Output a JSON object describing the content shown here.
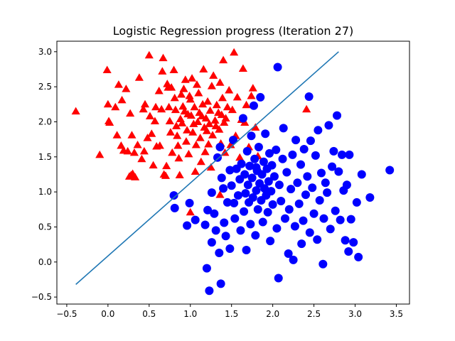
{
  "chart_data": {
    "type": "scatter",
    "title": "Logistic Regression progress (Iteration 27)",
    "xlabel": "",
    "ylabel": "",
    "xlim": [
      -0.62,
      3.66
    ],
    "ylim": [
      -0.6,
      3.15
    ],
    "x_ticks": [
      -0.5,
      0.0,
      0.5,
      1.0,
      1.5,
      2.0,
      2.5,
      3.0,
      3.5
    ],
    "y_ticks": [
      -0.5,
      0.0,
      0.5,
      1.0,
      1.5,
      2.0,
      2.5,
      3.0
    ],
    "x_tick_labels": [
      "−0.5",
      "0.0",
      "0.5",
      "1.0",
      "1.5",
      "2.0",
      "2.5",
      "3.0",
      "3.5"
    ],
    "y_tick_labels": [
      "−0.5",
      "0.0",
      "0.5",
      "1.0",
      "1.5",
      "2.0",
      "2.5",
      "3.0"
    ],
    "grid": false,
    "legend": "none",
    "series": [
      {
        "marker": "triangle",
        "color": "#ff0000",
        "points": [
          [
            -0.39,
            2.14
          ],
          [
            -0.1,
            1.52
          ],
          [
            -0.01,
            2.73
          ],
          [
            0.0,
            2.24
          ],
          [
            0.01,
            2.0
          ],
          [
            0.02,
            1.98
          ],
          [
            0.09,
            2.2
          ],
          [
            0.11,
            1.8
          ],
          [
            0.13,
            2.52
          ],
          [
            0.16,
            1.65
          ],
          [
            0.17,
            2.3
          ],
          [
            0.19,
            1.58
          ],
          [
            0.22,
            2.46
          ],
          [
            0.24,
            1.57
          ],
          [
            0.26,
            1.21
          ],
          [
            0.27,
            2.11
          ],
          [
            0.28,
            1.23
          ],
          [
            0.29,
            1.8
          ],
          [
            0.3,
            1.25
          ],
          [
            0.32,
            1.55
          ],
          [
            0.33,
            1.2
          ],
          [
            0.36,
            1.66
          ],
          [
            0.38,
            2.62
          ],
          [
            0.41,
            1.46
          ],
          [
            0.43,
            2.17
          ],
          [
            0.44,
            1.57
          ],
          [
            0.45,
            2.24
          ],
          [
            0.48,
            1.76
          ],
          [
            0.5,
            2.94
          ],
          [
            0.51,
            2.07
          ],
          [
            0.53,
            1.82
          ],
          [
            0.55,
            1.37
          ],
          [
            0.57,
            2.0
          ],
          [
            0.58,
            2.2
          ],
          [
            0.59,
            1.64
          ],
          [
            0.62,
            2.43
          ],
          [
            0.63,
            1.65
          ],
          [
            0.65,
            2.17
          ],
          [
            0.66,
            2.71
          ],
          [
            0.67,
            2.9
          ],
          [
            0.68,
            1.24
          ],
          [
            0.7,
            1.22
          ],
          [
            0.71,
            1.36
          ],
          [
            0.72,
            2.53
          ],
          [
            0.73,
            2.48
          ],
          [
            0.74,
            2.2
          ],
          [
            0.75,
            2.0
          ],
          [
            0.76,
            1.84
          ],
          [
            0.77,
            2.48
          ],
          [
            0.78,
            1.55
          ],
          [
            0.8,
            2.73
          ],
          [
            0.81,
            2.33
          ],
          [
            0.82,
            2.16
          ],
          [
            0.83,
            1.93
          ],
          [
            0.84,
            1.79
          ],
          [
            0.85,
            1.65
          ],
          [
            0.86,
            1.47
          ],
          [
            0.87,
            1.23
          ],
          [
            0.88,
            2.03
          ],
          [
            0.89,
            2.38
          ],
          [
            0.9,
            1.97
          ],
          [
            0.91,
            2.21
          ],
          [
            0.92,
            2.46
          ],
          [
            0.93,
            2.14
          ],
          [
            0.94,
            2.59
          ],
          [
            0.95,
            1.71
          ],
          [
            0.96,
            1.87
          ],
          [
            0.97,
            2.1
          ],
          [
            0.98,
            1.53
          ],
          [
            0.99,
            2.36
          ],
          [
            1.0,
            2.31
          ],
          [
            1.01,
            2.08
          ],
          [
            1.02,
            2.61
          ],
          [
            1.03,
            1.84
          ],
          [
            1.04,
            1.96
          ],
          [
            1.05,
            2.2
          ],
          [
            1.06,
            1.28
          ],
          [
            1.07,
            1.66
          ],
          [
            1.08,
            2.52
          ],
          [
            1.09,
            1.99
          ],
          [
            1.1,
            2.4
          ],
          [
            1.11,
            2.12
          ],
          [
            1.12,
            1.76
          ],
          [
            1.13,
            1.42
          ],
          [
            1.14,
            2.07
          ],
          [
            1.15,
            2.24
          ],
          [
            1.16,
            2.74
          ],
          [
            1.17,
            1.91
          ],
          [
            1.18,
            1.56
          ],
          [
            1.19,
            2.04
          ],
          [
            1.2,
            1.86
          ],
          [
            1.21,
            2.28
          ],
          [
            1.22,
            1.67
          ],
          [
            1.23,
            1.96
          ],
          [
            1.24,
            2.15
          ],
          [
            1.25,
            1.34
          ],
          [
            1.26,
            2.5
          ],
          [
            1.27,
            1.8
          ],
          [
            1.28,
            2.65
          ],
          [
            1.3,
            2.01
          ],
          [
            1.31,
            1.93
          ],
          [
            1.32,
            2.23
          ],
          [
            1.34,
            2.12
          ],
          [
            1.35,
            1.88
          ],
          [
            1.36,
            2.55
          ],
          [
            1.37,
            1.68
          ],
          [
            1.38,
            2.09
          ],
          [
            1.39,
            2.33
          ],
          [
            1.4,
            2.87
          ],
          [
            1.41,
            1.98
          ],
          [
            1.42,
            1.55
          ],
          [
            1.43,
            2.04
          ],
          [
            1.45,
            2.2
          ],
          [
            1.47,
            2.44
          ],
          [
            1.49,
            1.66
          ],
          [
            1.51,
            2.16
          ],
          [
            1.53,
            2.98
          ],
          [
            1.55,
            1.79
          ],
          [
            1.57,
            2.34
          ],
          [
            1.6,
            1.48
          ],
          [
            1.62,
            2.02
          ],
          [
            1.64,
            2.75
          ],
          [
            1.66,
            1.98
          ],
          [
            1.68,
            2.23
          ],
          [
            1.71,
            1.63
          ],
          [
            1.74,
            2.36
          ],
          [
            1.76,
            2.47
          ],
          [
            1.79,
            1.91
          ],
          [
            1.82,
            1.5
          ],
          [
            2.41,
            2.17
          ],
          [
            1.0,
            0.7
          ],
          [
            1.36,
            0.95
          ]
        ]
      },
      {
        "marker": "circle",
        "color": "#0000ff",
        "points": [
          [
            1.2,
            -0.09
          ],
          [
            1.23,
            -0.41
          ],
          [
            1.37,
            -0.31
          ],
          [
            1.26,
            0.28
          ],
          [
            1.35,
            0.13
          ],
          [
            1.41,
            0.56
          ],
          [
            1.48,
            0.19
          ],
          [
            1.53,
            0.84
          ],
          [
            1.18,
            0.53
          ],
          [
            1.21,
            0.74
          ],
          [
            1.06,
            0.6
          ],
          [
            0.96,
            0.52
          ],
          [
            0.99,
            0.84
          ],
          [
            0.8,
            0.95
          ],
          [
            0.81,
            0.77
          ],
          [
            1.26,
            0.99
          ],
          [
            1.29,
            0.69
          ],
          [
            1.31,
            0.45
          ],
          [
            1.33,
            1.49
          ],
          [
            1.36,
            1.64
          ],
          [
            1.38,
            1.2
          ],
          [
            1.4,
            1.05
          ],
          [
            1.43,
            0.37
          ],
          [
            1.45,
            0.85
          ],
          [
            1.48,
            1.31
          ],
          [
            1.5,
            1.09
          ],
          [
            1.52,
            1.74
          ],
          [
            1.54,
            0.62
          ],
          [
            1.56,
            1.33
          ],
          [
            1.58,
            0.95
          ],
          [
            1.6,
            1.18
          ],
          [
            1.61,
            0.45
          ],
          [
            1.62,
            1.4
          ],
          [
            1.64,
            2.05
          ],
          [
            1.65,
            0.72
          ],
          [
            1.66,
            1.25
          ],
          [
            1.67,
            0.98
          ],
          [
            1.68,
            0.17
          ],
          [
            1.69,
            1.58
          ],
          [
            1.7,
            1.1
          ],
          [
            1.71,
            0.85
          ],
          [
            1.72,
            1.37
          ],
          [
            1.73,
            0.54
          ],
          [
            1.74,
            1.8
          ],
          [
            1.75,
            1.2
          ],
          [
            1.76,
            0.92
          ],
          [
            1.77,
            2.23
          ],
          [
            1.78,
            1.47
          ],
          [
            1.79,
            0.38
          ],
          [
            1.8,
            1.02
          ],
          [
            1.81,
            1.3
          ],
          [
            1.82,
            0.75
          ],
          [
            1.83,
            1.64
          ],
          [
            1.84,
            1.12
          ],
          [
            1.85,
            2.35
          ],
          [
            1.86,
            0.88
          ],
          [
            1.87,
            1.25
          ],
          [
            1.88,
            0.57
          ],
          [
            1.89,
            1.43
          ],
          [
            1.9,
            1.05
          ],
          [
            1.91,
            1.83
          ],
          [
            1.92,
            0.95
          ],
          [
            1.93,
            1.33
          ],
          [
            1.94,
            0.71
          ],
          [
            1.95,
            1.15
          ],
          [
            1.96,
            1.55
          ],
          [
            1.97,
            0.3
          ],
          [
            1.98,
            1.01
          ],
          [
            1.99,
            1.38
          ],
          [
            2.0,
            0.82
          ],
          [
            2.02,
            1.22
          ],
          [
            2.04,
            1.6
          ],
          [
            2.05,
            0.48
          ],
          [
            2.06,
            2.78
          ],
          [
            2.07,
            -0.23
          ],
          [
            2.08,
            1.1
          ],
          [
            2.1,
            0.87
          ],
          [
            2.12,
            1.47
          ],
          [
            2.13,
            1.91
          ],
          [
            2.15,
            0.62
          ],
          [
            2.17,
            1.28
          ],
          [
            2.19,
            0.12
          ],
          [
            2.2,
            0.75
          ],
          [
            2.22,
            1.04
          ],
          [
            2.24,
            1.53
          ],
          [
            2.25,
            0.03
          ],
          [
            2.27,
            0.51
          ],
          [
            2.28,
            1.74
          ],
          [
            2.3,
            1.13
          ],
          [
            2.32,
            0.83
          ],
          [
            2.34,
            1.39
          ],
          [
            2.35,
            0.26
          ],
          [
            2.37,
            0.59
          ],
          [
            2.38,
            1.61
          ],
          [
            2.4,
            0.96
          ],
          [
            2.42,
            1.22
          ],
          [
            2.44,
            2.36
          ],
          [
            2.45,
            0.42
          ],
          [
            2.46,
            1.73
          ],
          [
            2.48,
            1.06
          ],
          [
            2.5,
            0.69
          ],
          [
            2.52,
            1.52
          ],
          [
            2.54,
            0.32
          ],
          [
            2.55,
            1.88
          ],
          [
            2.57,
            0.88
          ],
          [
            2.59,
            1.27
          ],
          [
            2.61,
            -0.03
          ],
          [
            2.62,
            0.62
          ],
          [
            2.64,
            1.13
          ],
          [
            2.66,
            0.99
          ],
          [
            2.68,
            1.95
          ],
          [
            2.7,
            0.47
          ],
          [
            2.72,
            1.36
          ],
          [
            2.74,
            1.58
          ],
          [
            2.76,
            0.73
          ],
          [
            2.78,
            2.09
          ],
          [
            2.8,
            1.29
          ],
          [
            2.82,
            0.6
          ],
          [
            2.84,
            1.53
          ],
          [
            2.86,
            1.02
          ],
          [
            2.88,
            0.31
          ],
          [
            2.9,
            1.1
          ],
          [
            2.92,
            0.15
          ],
          [
            2.93,
            1.53
          ],
          [
            2.95,
            0.61
          ],
          [
            2.98,
            0.28
          ],
          [
            3.02,
            0.85
          ],
          [
            3.04,
            0.07
          ],
          [
            3.08,
            1.25
          ],
          [
            3.18,
            0.92
          ],
          [
            3.42,
            1.31
          ],
          [
            1.8,
            1.35
          ]
        ]
      }
    ],
    "line": {
      "color": "#1f77b4",
      "points": [
        [
          -0.39,
          -0.32
        ],
        [
          2.8,
          3.0
        ]
      ]
    }
  }
}
